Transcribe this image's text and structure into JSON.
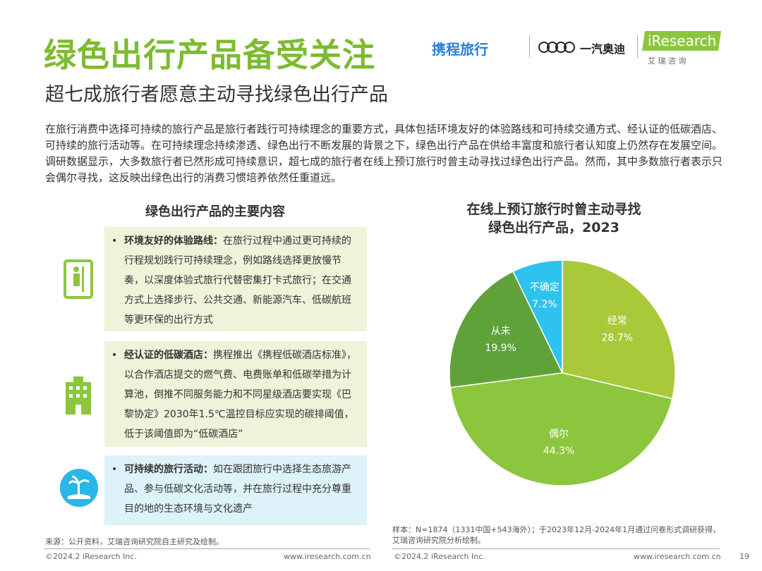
{
  "header": {
    "title": "绿色出行产品备受关注",
    "subtitle": "超七成旅行者愿意主动寻找绿色出行产品",
    "logos": [
      "携程旅行",
      "一汽奥迪",
      "iResearch",
      "艾 瑞 咨 询"
    ]
  },
  "intro": "在旅行消费中选择可持续的旅行产品是旅行者践行可持续理念的重要方式，具体包括环境友好的体验路线和可持续交通方式、经认证的低碳酒店、可持续的旅行活动等。在可持续理念持续渗透、绿色出行不断发展的背景之下，绿色出行产品在供给丰富度和旅行者认知度上仍然存在发展空间。调研数据显示，大多数旅行者已然形成可持续意识，超七成的旅行者在线上预订旅行时曾主动寻找过绿色出行产品。然而，其中多数旅行者表示只会偶尔寻找，这反映出绿色出行的消费习惯培养依然任重道远。",
  "contents": {
    "title": "绿色出行产品的主要内容",
    "items": [
      {
        "lead": "环境友好的体验路线：",
        "text": "在旅行过程中通过更可持续的行程规划践行可持续理念，例如路线选择更放慢节奏，以深度体验式旅行代替密集打卡式旅行；在交通方式上选择步行、公共交通、新能源汽车、低碳航班等更环保的出行方式"
      },
      {
        "lead": "经认证的低碳酒店：",
        "text": "携程推出《携程低碳酒店标准》，以合作酒店提交的燃气费、电费账单和低碳举措为计算池，倒推不同服务能力和不同星级酒店要实现《巴黎协定》2030年1.5℃温控目标应实现的碳排阈值，低于该阈值即为“低碳酒店”"
      },
      {
        "lead": "可持续的旅行活动：",
        "text": "如在跟团旅行中选择生态旅游产品、参与低碳文化活动等，并在旅行过程中充分尊重目的地的生态环境与文化遗产"
      }
    ]
  },
  "chart_data": {
    "type": "pie",
    "title": "在线上预订旅行时曾主动寻找\n绿色出行产品，2023",
    "categories": [
      "经常",
      "偶尔",
      "从未",
      "不确定"
    ],
    "values": [
      28.7,
      44.3,
      19.9,
      7.2
    ],
    "value_labels": [
      "28.7%",
      "44.3%",
      "19.9%",
      "7.2%"
    ],
    "colors": [
      "#a9c93a",
      "#8cc63e",
      "#5fa23a",
      "#2ec3ee"
    ]
  },
  "footer": {
    "note": "样本：N=1874（1331中国+543海外）；于2023年12月-2024年1月通过问卷形式调研获得，艾瑞咨询研究院分析绘制。",
    "source": "来源：公开资料，艾瑞咨询研究院自主研究及绘制。",
    "copyright": "©2024.2 iResearch Inc.",
    "website": "www.iresearch.com.cn",
    "page": "19"
  }
}
